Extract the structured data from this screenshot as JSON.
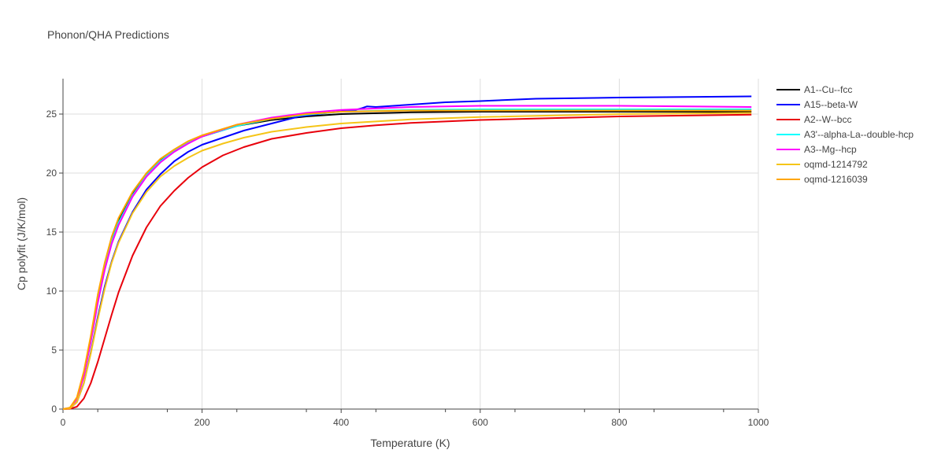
{
  "chart_data": {
    "type": "line",
    "title": "Phonon/QHA Predictions",
    "xlabel": "Temperature (K)",
    "ylabel": "Cp polyfit (J/K/mol)",
    "xlim": [
      0,
      1000
    ],
    "ylim": [
      0,
      28
    ],
    "xticks": [
      0,
      200,
      400,
      600,
      800,
      1000
    ],
    "yticks": [
      0,
      5,
      10,
      15,
      20,
      25
    ],
    "grid": true,
    "legend_position": "right",
    "series": [
      {
        "name": "A1--Cu--fcc",
        "color": "#000000",
        "x": [
          0,
          10,
          20,
          30,
          40,
          50,
          60,
          70,
          80,
          100,
          120,
          140,
          160,
          180,
          200,
          250,
          300,
          350,
          400,
          500,
          600,
          800,
          990
        ],
        "y": [
          0,
          0.1,
          0.9,
          3.0,
          6.0,
          9.5,
          12.2,
          14.4,
          16.0,
          18.2,
          19.9,
          21.1,
          21.9,
          22.6,
          23.1,
          24.0,
          24.5,
          24.8,
          25.0,
          25.15,
          25.2,
          25.2,
          25.2
        ]
      },
      {
        "name": "A15--beta-W",
        "color": "#0000ff",
        "x": [
          0,
          10,
          20,
          30,
          40,
          50,
          60,
          70,
          80,
          100,
          120,
          140,
          160,
          180,
          200,
          230,
          260,
          300,
          340,
          380,
          420,
          430,
          437,
          450,
          500,
          550,
          600,
          680,
          800,
          900,
          990
        ],
        "y": [
          0,
          0.05,
          0.6,
          2.2,
          4.8,
          7.8,
          10.4,
          12.5,
          14.2,
          16.7,
          18.6,
          19.9,
          21.0,
          21.8,
          22.4,
          23.0,
          23.6,
          24.2,
          24.8,
          25.1,
          25.35,
          25.5,
          25.65,
          25.6,
          25.8,
          26.0,
          26.1,
          26.3,
          26.4,
          26.45,
          26.5
        ]
      },
      {
        "name": "A2--W--bcc",
        "color": "#e8000b",
        "x": [
          0,
          10,
          20,
          30,
          40,
          50,
          60,
          70,
          80,
          100,
          120,
          140,
          160,
          180,
          200,
          230,
          260,
          300,
          350,
          400,
          450,
          500,
          600,
          700,
          800,
          990
        ],
        "y": [
          0,
          0.02,
          0.2,
          0.9,
          2.2,
          4.0,
          6.0,
          8.0,
          9.9,
          13.0,
          15.4,
          17.2,
          18.5,
          19.6,
          20.5,
          21.5,
          22.2,
          22.9,
          23.4,
          23.8,
          24.05,
          24.25,
          24.5,
          24.65,
          24.8,
          24.95
        ]
      },
      {
        "name": "A3'--alpha-La--double-hcp",
        "color": "#00ffff",
        "x": [
          0,
          10,
          20,
          30,
          40,
          50,
          60,
          70,
          80,
          100,
          120,
          140,
          160,
          180,
          200,
          250,
          300,
          350,
          400,
          500,
          600,
          800,
          990
        ],
        "y": [
          0,
          0.1,
          0.9,
          2.9,
          5.9,
          9.3,
          12.0,
          14.2,
          15.8,
          18.1,
          19.8,
          21.0,
          21.9,
          22.6,
          23.1,
          24.0,
          24.6,
          24.95,
          25.2,
          25.35,
          25.4,
          25.4,
          25.4
        ]
      },
      {
        "name": "A3--Mg--hcp",
        "color": "#ff00ff",
        "x": [
          0,
          10,
          20,
          30,
          40,
          50,
          60,
          70,
          80,
          100,
          120,
          140,
          160,
          180,
          200,
          250,
          300,
          350,
          400,
          500,
          600,
          700,
          800,
          990
        ],
        "y": [
          0,
          0.1,
          0.85,
          2.8,
          5.7,
          9.0,
          11.8,
          14.0,
          15.6,
          18.0,
          19.7,
          20.9,
          21.8,
          22.5,
          23.1,
          24.1,
          24.7,
          25.1,
          25.35,
          25.6,
          25.7,
          25.7,
          25.7,
          25.6
        ]
      },
      {
        "name": "oqmd-1214792",
        "color": "#f5c518",
        "x": [
          0,
          10,
          20,
          30,
          40,
          50,
          60,
          70,
          80,
          100,
          120,
          140,
          160,
          180,
          200,
          230,
          260,
          300,
          350,
          400,
          500,
          600,
          800,
          990
        ],
        "y": [
          0,
          0.05,
          0.6,
          2.2,
          4.7,
          7.6,
          10.2,
          12.4,
          14.1,
          16.6,
          18.4,
          19.7,
          20.6,
          21.3,
          21.9,
          22.5,
          23.0,
          23.5,
          23.9,
          24.2,
          24.55,
          24.75,
          25.0,
          25.1
        ]
      },
      {
        "name": "oqmd-1216039",
        "color": "#ffa500",
        "x": [
          0,
          10,
          20,
          30,
          40,
          50,
          60,
          70,
          80,
          100,
          120,
          140,
          160,
          180,
          200,
          250,
          300,
          350,
          400,
          500,
          600,
          800,
          990
        ],
        "y": [
          0,
          0.12,
          1.0,
          3.2,
          6.2,
          9.7,
          12.4,
          14.6,
          16.2,
          18.4,
          20.0,
          21.2,
          22.0,
          22.7,
          23.2,
          24.1,
          24.6,
          25.0,
          25.2,
          25.3,
          25.3,
          25.3,
          25.3
        ]
      }
    ]
  }
}
